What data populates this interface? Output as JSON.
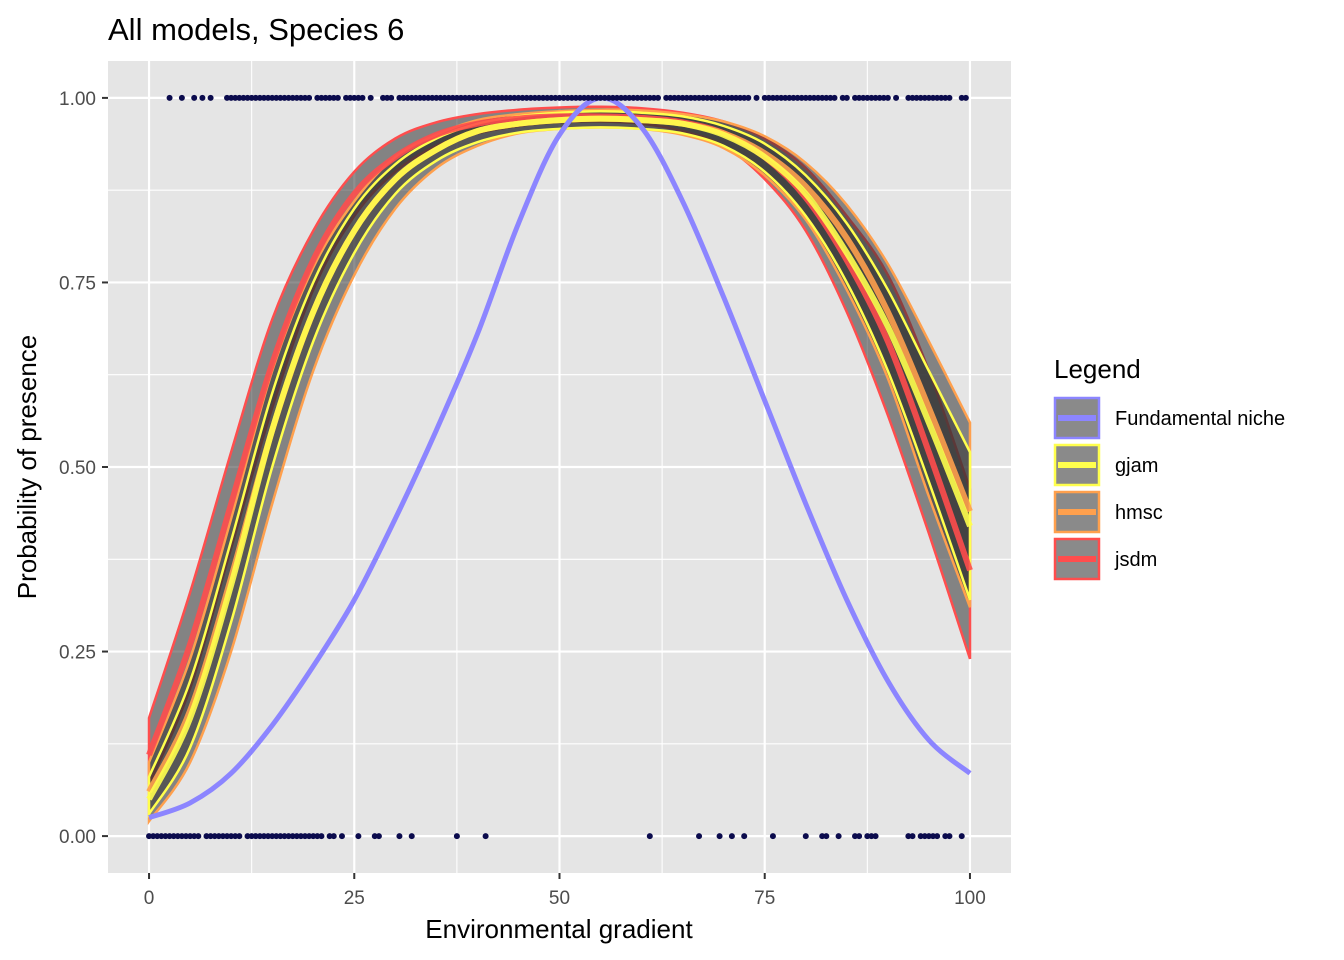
{
  "chart_data": {
    "type": "line",
    "title": "All models, Species 6",
    "xlabel": "Environmental gradient",
    "ylabel": "Probability of presence",
    "xlim": [
      -5,
      105
    ],
    "ylim": [
      -0.05,
      1.05
    ],
    "x_ticks": [
      0,
      25,
      50,
      75,
      100
    ],
    "x_tick_labels": [
      "0",
      "25",
      "50",
      "75",
      "100"
    ],
    "y_ticks": [
      0,
      0.25,
      0.5,
      0.75,
      1
    ],
    "y_tick_labels": [
      "0.00",
      "0.25",
      "0.50",
      "0.75",
      "1.00"
    ],
    "grid": true,
    "legend": {
      "title": "Legend",
      "position": "right",
      "items": [
        {
          "label": "Fundamental niche",
          "color": "#8c85ff"
        },
        {
          "label": "gjam",
          "color": "#ffff4d"
        },
        {
          "label": "hmsc",
          "color": "#ffa04d"
        },
        {
          "label": "jsdm",
          "color": "#ff4d4d"
        }
      ]
    },
    "colors": {
      "panel_bg": "#e5e5e5",
      "grid_line": "#ffffff",
      "ribbon_fill": "#333333",
      "points": "#0b0b4d"
    },
    "series": [
      {
        "name": "Fundamental niche",
        "color": "#8c85ff",
        "x": [
          0,
          5,
          10,
          15,
          20,
          25,
          30,
          35,
          40,
          45,
          50,
          55,
          60,
          65,
          70,
          75,
          80,
          85,
          90,
          95,
          100
        ],
        "y": [
          0.025,
          0.045,
          0.085,
          0.15,
          0.23,
          0.32,
          0.43,
          0.55,
          0.68,
          0.83,
          0.95,
          1.0,
          0.96,
          0.86,
          0.73,
          0.59,
          0.45,
          0.32,
          0.21,
          0.13,
          0.085
        ]
      },
      {
        "name": "gjam",
        "color": "#ffff4d",
        "x": [
          0,
          5,
          10,
          15,
          20,
          25,
          30,
          35,
          40,
          45,
          50,
          55,
          60,
          65,
          70,
          75,
          80,
          85,
          90,
          95,
          100
        ],
        "y": [
          0.05,
          0.16,
          0.34,
          0.55,
          0.71,
          0.82,
          0.89,
          0.93,
          0.955,
          0.965,
          0.97,
          0.972,
          0.97,
          0.965,
          0.95,
          0.92,
          0.87,
          0.79,
          0.69,
          0.56,
          0.42
        ],
        "band_low": [
          0.03,
          0.12,
          0.29,
          0.5,
          0.67,
          0.79,
          0.87,
          0.915,
          0.94,
          0.953,
          0.958,
          0.96,
          0.958,
          0.952,
          0.935,
          0.9,
          0.84,
          0.75,
          0.63,
          0.48,
          0.32
        ],
        "band_high": [
          0.08,
          0.21,
          0.4,
          0.6,
          0.75,
          0.85,
          0.91,
          0.945,
          0.965,
          0.975,
          0.98,
          0.982,
          0.98,
          0.975,
          0.962,
          0.938,
          0.895,
          0.83,
          0.74,
          0.63,
          0.52
        ]
      },
      {
        "name": "hmsc",
        "color": "#ffa04d",
        "x": [
          0,
          5,
          10,
          15,
          20,
          25,
          30,
          35,
          40,
          45,
          50,
          55,
          60,
          65,
          70,
          75,
          80,
          85,
          90,
          95,
          100
        ],
        "y": [
          0.06,
          0.17,
          0.35,
          0.55,
          0.71,
          0.82,
          0.89,
          0.93,
          0.955,
          0.965,
          0.97,
          0.972,
          0.97,
          0.965,
          0.952,
          0.925,
          0.88,
          0.81,
          0.71,
          0.58,
          0.44
        ],
        "band_low": [
          0.02,
          0.1,
          0.25,
          0.45,
          0.63,
          0.76,
          0.85,
          0.905,
          0.935,
          0.952,
          0.958,
          0.96,
          0.958,
          0.95,
          0.932,
          0.895,
          0.835,
          0.74,
          0.62,
          0.46,
          0.31
        ],
        "band_high": [
          0.1,
          0.24,
          0.43,
          0.63,
          0.77,
          0.86,
          0.92,
          0.95,
          0.97,
          0.978,
          0.982,
          0.984,
          0.983,
          0.978,
          0.968,
          0.948,
          0.912,
          0.855,
          0.775,
          0.67,
          0.56
        ]
      },
      {
        "name": "jsdm",
        "color": "#ff4d4d",
        "x": [
          0,
          5,
          10,
          15,
          20,
          25,
          30,
          35,
          40,
          45,
          50,
          55,
          60,
          65,
          70,
          75,
          80,
          85,
          90,
          95,
          100
        ],
        "y": [
          0.11,
          0.26,
          0.45,
          0.64,
          0.78,
          0.87,
          0.92,
          0.95,
          0.965,
          0.972,
          0.975,
          0.975,
          0.973,
          0.967,
          0.952,
          0.92,
          0.865,
          0.78,
          0.67,
          0.52,
          0.36
        ],
        "band_low": [
          0.07,
          0.2,
          0.39,
          0.58,
          0.74,
          0.84,
          0.9,
          0.935,
          0.952,
          0.962,
          0.967,
          0.968,
          0.965,
          0.955,
          0.935,
          0.89,
          0.82,
          0.71,
          0.57,
          0.41,
          0.24
        ],
        "band_high": [
          0.16,
          0.33,
          0.52,
          0.7,
          0.82,
          0.9,
          0.945,
          0.967,
          0.978,
          0.984,
          0.987,
          0.988,
          0.986,
          0.98,
          0.968,
          0.945,
          0.905,
          0.84,
          0.76,
          0.63,
          0.47
        ]
      }
    ],
    "observations": {
      "presence_x": [
        2.5,
        4,
        5.5,
        6.5,
        7.5,
        9.5,
        10,
        10.5,
        11,
        11.5,
        12,
        12.5,
        13,
        13.5,
        14,
        14.5,
        15,
        15.5,
        16,
        16.5,
        17,
        17.5,
        18,
        18.5,
        19,
        19.5,
        20.5,
        21,
        21.5,
        22,
        22.5,
        23,
        24,
        24.5,
        25,
        25.5,
        26,
        27,
        28.5,
        29,
        29.5,
        30.5,
        31,
        31.5,
        32,
        32.5,
        33,
        33.5,
        34,
        34.5,
        35,
        35.5,
        36,
        36.5,
        37,
        37.5,
        38,
        38.5,
        39,
        39.5,
        40,
        40.5,
        41,
        41.5,
        42,
        42.5,
        43,
        43.5,
        44,
        44.5,
        45,
        45.5,
        46,
        46.5,
        47,
        47.5,
        48,
        48.5,
        49,
        49.5,
        50,
        50.5,
        51,
        51.5,
        52,
        52.5,
        53,
        53.5,
        54,
        54.5,
        55,
        55.5,
        56,
        56.5,
        57,
        57.5,
        58,
        58.5,
        59,
        59.5,
        60,
        60.5,
        61,
        61.5,
        62,
        63,
        63.5,
        64,
        64.5,
        65,
        65.5,
        66,
        66.5,
        67,
        67.5,
        68,
        68.5,
        69,
        69.5,
        70,
        70.5,
        71,
        71.5,
        72,
        72.5,
        73,
        74,
        75,
        75.5,
        76,
        76.5,
        77,
        77.5,
        78,
        78.5,
        79,
        79.5,
        80,
        80.5,
        81,
        81.5,
        82,
        82.5,
        83,
        83.5,
        84.5,
        85,
        86,
        86.5,
        87,
        87.5,
        88,
        88.5,
        89,
        89.5,
        90,
        91,
        92.5,
        93,
        93.5,
        94,
        94.5,
        95,
        95.5,
        96,
        96.5,
        97,
        97.5,
        99,
        99.5
      ],
      "absence_x": [
        0,
        0.5,
        1,
        1.5,
        2,
        2.5,
        3,
        3.5,
        4,
        4.5,
        5,
        5.5,
        6,
        7,
        7.5,
        8,
        8.5,
        9,
        9.5,
        10,
        10.5,
        11,
        12,
        12.5,
        13,
        13.5,
        14,
        14.5,
        15,
        15.5,
        16,
        16.5,
        17,
        17.5,
        18,
        18.5,
        19,
        19.5,
        20,
        20.5,
        21,
        22,
        22.5,
        23.5,
        25.5,
        27.5,
        28,
        30.5,
        32,
        37.5,
        41,
        61,
        67,
        69.5,
        71,
        72.5,
        76,
        80,
        82,
        82.5,
        84,
        86,
        86.5,
        87.5,
        88,
        88.5,
        92.5,
        93,
        94,
        94.5,
        95,
        95.5,
        96,
        97,
        97.5,
        99
      ]
    }
  }
}
